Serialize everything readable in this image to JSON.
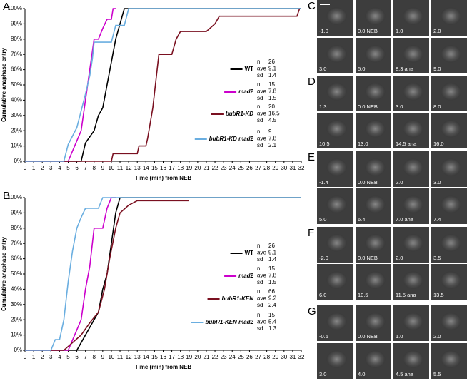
{
  "chart_data": [
    {
      "type": "line",
      "panel_label": "A",
      "xlabel": "Time (min) from NEB",
      "ylabel": "Cumulative anaphase entry",
      "stat_labels": [
        "n",
        "ave",
        "sd"
      ],
      "xlim": [
        0,
        32
      ],
      "ylim": [
        0,
        100
      ],
      "xticks": [
        0,
        1,
        2,
        3,
        4,
        5,
        6,
        7,
        8,
        9,
        10,
        11,
        12,
        13,
        14,
        15,
        16,
        17,
        18,
        19,
        20,
        21,
        22,
        23,
        24,
        25,
        26,
        27,
        28,
        29,
        30,
        31,
        32
      ],
      "yticks": [
        {
          "value": 0,
          "label": "0%"
        },
        {
          "value": 10,
          "label": "10%"
        },
        {
          "value": 20,
          "label": "20%"
        },
        {
          "value": 30,
          "label": "30%"
        },
        {
          "value": 40,
          "label": "40%"
        },
        {
          "value": 50,
          "label": "50%"
        },
        {
          "value": 60,
          "label": "60%"
        },
        {
          "value": 70,
          "label": "70%"
        },
        {
          "value": 80,
          "label": "80%"
        },
        {
          "value": 90,
          "label": "90%"
        },
        {
          "value": 100,
          "label": "100%"
        }
      ],
      "series": [
        {
          "name": "WT",
          "font_style": "normal",
          "color": "#000000",
          "n": 26,
          "ave": 9.1,
          "sd": 1.4,
          "x": [
            0,
            6.5,
            7,
            8,
            8.5,
            9,
            9.5,
            10,
            10.5,
            11,
            11.5,
            32
          ],
          "values": [
            0,
            0,
            12,
            20,
            30,
            35,
            50,
            65,
            80,
            90,
            100,
            100
          ]
        },
        {
          "name": "mad2",
          "font_style": "italic",
          "color": "#cc00cc",
          "n": 15,
          "ave": 7.8,
          "sd": 1.5,
          "x": [
            0,
            5,
            6.5,
            7,
            7.5,
            8,
            8.5,
            9,
            9.5,
            10,
            10.2,
            10.5
          ],
          "values": [
            0,
            0,
            20,
            40,
            60,
            80,
            80,
            87,
            93,
            93,
            100,
            100
          ]
        },
        {
          "name": "bubR1-KD",
          "font_style": "italic",
          "color": "#7a1020",
          "n": 20,
          "ave": 16.5,
          "sd": 4.5,
          "x": [
            0,
            10,
            10.2,
            13,
            13.2,
            14,
            14.2,
            14.5,
            14.8,
            15,
            15.5,
            17,
            17.5,
            18,
            21,
            22,
            22.5,
            31.5,
            31.8,
            32
          ],
          "values": [
            0,
            0,
            5,
            5,
            10,
            10,
            15,
            25,
            35,
            45,
            70,
            70,
            80,
            85,
            85,
            90,
            95,
            95,
            100,
            100
          ]
        },
        {
          "name": "bubR1-KD mad2",
          "font_style": "italic",
          "color": "#6aaee0",
          "n": 9,
          "ave": 7.8,
          "sd": 2.1,
          "x": [
            0,
            4.5,
            5,
            6,
            6.5,
            7,
            7.5,
            7.8,
            8,
            10,
            10.5,
            11.5,
            12,
            32
          ],
          "values": [
            0,
            0,
            11,
            22,
            33,
            44,
            56,
            67,
            78,
            78,
            89,
            89,
            100,
            100
          ]
        }
      ]
    },
    {
      "type": "line",
      "panel_label": "B",
      "xlabel": "Time (min) from NEB",
      "ylabel": "Cumulative anaphase entry",
      "stat_labels": [
        "n",
        "ave",
        "sd"
      ],
      "xlim": [
        0,
        32
      ],
      "ylim": [
        0,
        100
      ],
      "xticks": [
        0,
        1,
        2,
        3,
        4,
        5,
        6,
        7,
        8,
        9,
        10,
        11,
        12,
        13,
        14,
        15,
        16,
        17,
        18,
        19,
        20,
        21,
        22,
        23,
        24,
        25,
        26,
        27,
        28,
        29,
        30,
        31,
        32
      ],
      "yticks": [
        {
          "value": 0,
          "label": "0%"
        },
        {
          "value": 10,
          "label": "10%"
        },
        {
          "value": 20,
          "label": "20%"
        },
        {
          "value": 30,
          "label": "30%"
        },
        {
          "value": 40,
          "label": "40%"
        },
        {
          "value": 50,
          "label": "50%"
        },
        {
          "value": 60,
          "label": "60%"
        },
        {
          "value": 70,
          "label": "70%"
        },
        {
          "value": 80,
          "label": "80%"
        },
        {
          "value": 90,
          "label": "90%"
        },
        {
          "value": 100,
          "label": "100%"
        }
      ],
      "series": [
        {
          "name": "WT",
          "font_style": "normal",
          "color": "#000000",
          "n": 26,
          "ave": 9.1,
          "sd": 1.4,
          "x": [
            0,
            6,
            6.5,
            7.5,
            8.5,
            9,
            9.5,
            10,
            10.5,
            11,
            32
          ],
          "values": [
            0,
            0,
            5,
            15,
            25,
            40,
            50,
            70,
            90,
            100,
            100
          ]
        },
        {
          "name": "mad2",
          "font_style": "italic",
          "color": "#cc00cc",
          "n": 15,
          "ave": 7.8,
          "sd": 1.5,
          "x": [
            0,
            5,
            6.5,
            7,
            7.5,
            8,
            9,
            9.5,
            10,
            10.5
          ],
          "values": [
            0,
            0,
            20,
            40,
            55,
            80,
            80,
            93,
            100,
            100
          ]
        },
        {
          "name": "bubR1-KEN",
          "font_style": "italic",
          "color": "#7a1020",
          "n": 66,
          "ave": 9.2,
          "sd": 2.4,
          "x": [
            0,
            4.5,
            5.5,
            6.5,
            7.5,
            8.5,
            9.2,
            9.8,
            10.5,
            11,
            12,
            13,
            19
          ],
          "values": [
            0,
            0,
            5,
            10,
            18,
            25,
            40,
            60,
            80,
            90,
            95,
            98,
            98
          ]
        },
        {
          "name": "bubR1-KEN mad2",
          "font_style": "italic",
          "color": "#6aaee0",
          "n": 15,
          "ave": 5.4,
          "sd": 1.3,
          "x": [
            0,
            3,
            3.5,
            4,
            4.5,
            5,
            5.5,
            6,
            6.5,
            7,
            8.5,
            9,
            32
          ],
          "values": [
            0,
            0,
            7,
            7,
            20,
            45,
            65,
            80,
            87,
            93,
            93,
            100,
            100
          ]
        }
      ]
    }
  ],
  "image_panels": [
    {
      "label": "C",
      "rows": [
        [
          "-1.0",
          "0.0 NEB",
          "1.0",
          "2.0"
        ],
        [
          "3.0",
          "5.0",
          "8.3 ana",
          "9.0"
        ]
      ]
    },
    {
      "label": "D",
      "rows": [
        [
          "1.3",
          "0.0 NEB",
          "3.0",
          "8.0"
        ],
        [
          "10.5",
          "13.0",
          "14.5 ana",
          "16.0"
        ]
      ]
    },
    {
      "label": "E",
      "rows": [
        [
          "-1.4",
          "0.0 NEB",
          "2.0",
          "3.0"
        ],
        [
          "5.0",
          "6.4",
          "7.0 ana",
          "7.4"
        ]
      ]
    },
    {
      "label": "F",
      "rows": [
        [
          "-2.0",
          "0.0 NEB",
          "2.0",
          "3.5"
        ],
        [
          "6.0",
          "10.5",
          "11.5  ana",
          "13.5"
        ]
      ]
    },
    {
      "label": "G",
      "rows": [
        [
          "-0.5",
          "0.0 NEB",
          "1.0",
          "2.0"
        ],
        [
          "3.0",
          "4.0",
          "4.5 ana",
          "5.5"
        ]
      ]
    }
  ]
}
